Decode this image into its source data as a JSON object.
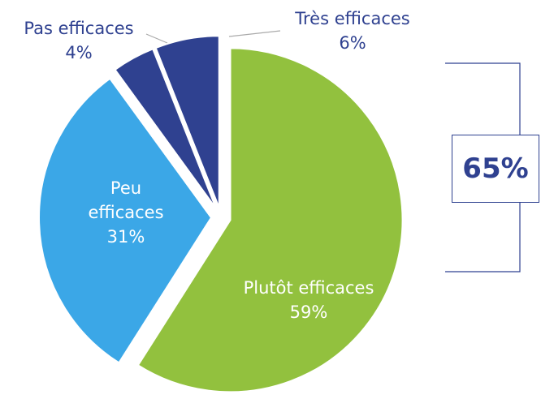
{
  "chart_data": {
    "type": "pie",
    "categories": [
      "Plutôt efficaces",
      "Peu efficaces",
      "Pas efficaces",
      "Très efficaces"
    ],
    "values": [
      59,
      31,
      4,
      6
    ],
    "value_labels": [
      "59%",
      "31%",
      "4%",
      "6%"
    ],
    "colors": [
      "#92c13e",
      "#3ba7e7",
      "#2f4190",
      "#2f4190"
    ],
    "annotation": "65%"
  }
}
